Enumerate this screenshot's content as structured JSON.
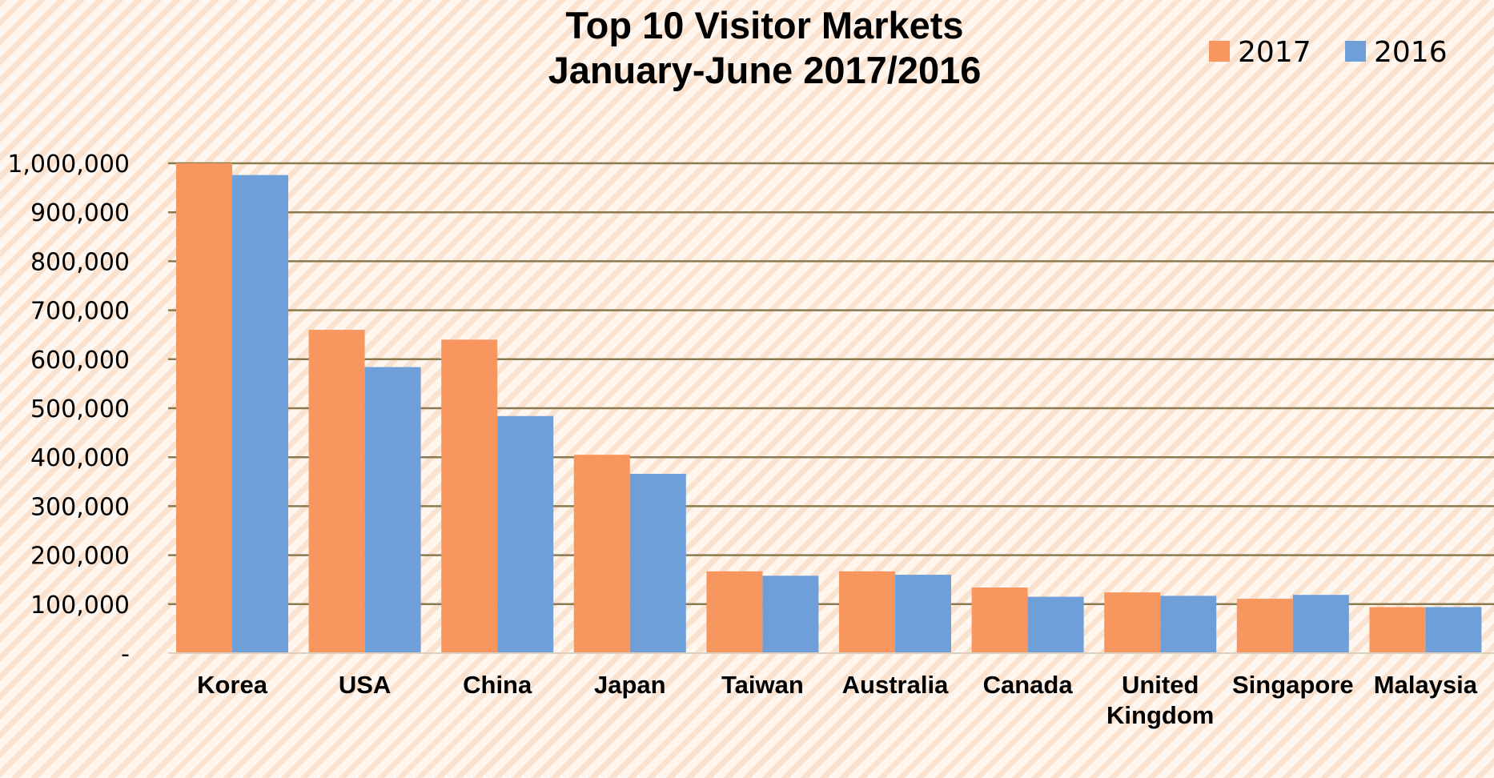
{
  "chart_data": {
    "type": "bar",
    "title": [
      "Top 10 Visitor Markets",
      "January-June 2017/2016"
    ],
    "categories": [
      "Korea",
      "USA",
      "China",
      "Japan",
      "Taiwan",
      "Australia",
      "Canada",
      "United Kingdom",
      "Singapore",
      "Malaysia"
    ],
    "category_lines": [
      [
        "Korea"
      ],
      [
        "USA"
      ],
      [
        "China"
      ],
      [
        "Japan"
      ],
      [
        "Taiwan"
      ],
      [
        "Australia"
      ],
      [
        "Canada"
      ],
      [
        "United",
        "Kingdom"
      ],
      [
        "Singapore"
      ],
      [
        "Malaysia"
      ]
    ],
    "series": [
      {
        "name": "2017",
        "color": "#f8965f",
        "values": [
          1000000,
          660000,
          640000,
          405000,
          167000,
          167000,
          134000,
          124000,
          111000,
          94000
        ]
      },
      {
        "name": "2016",
        "color": "#6f9fd8",
        "values": [
          976000,
          584000,
          484000,
          366000,
          158000,
          160000,
          115000,
          117000,
          119000,
          94000
        ]
      }
    ],
    "ylim": [
      0,
      1000000
    ],
    "yticks": [
      0,
      100000,
      200000,
      300000,
      400000,
      500000,
      600000,
      700000,
      800000,
      900000,
      1000000
    ],
    "ytick_labels": [
      "-",
      "100,000",
      "200,000",
      "300,000",
      "400,000",
      "500,000",
      "600,000",
      "700,000",
      "800,000",
      "900,000",
      "1,000,000"
    ],
    "xlabel": "",
    "ylabel": "",
    "grid": true,
    "grid_color": "#8b7a4f",
    "legend_position": "top-right"
  }
}
